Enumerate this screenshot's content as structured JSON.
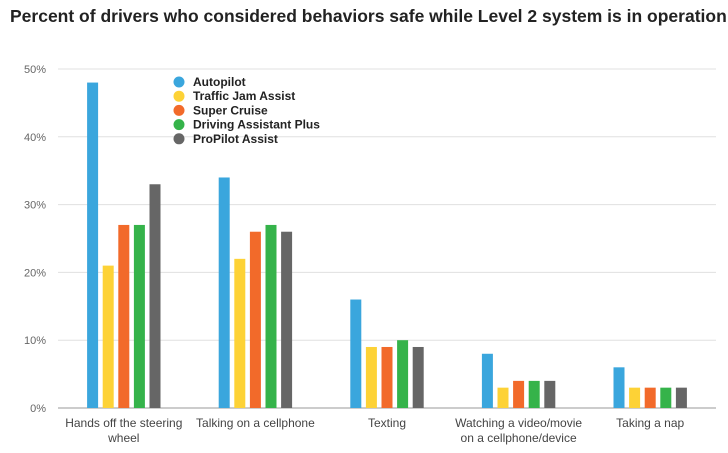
{
  "chart_data": {
    "type": "bar",
    "title": "Percent of drivers who considered behaviors safe while Level 2 system is in operation",
    "categories": [
      [
        "Hands off the steering",
        "wheel"
      ],
      [
        "Talking on a cellphone"
      ],
      [
        "Texting"
      ],
      [
        "Watching a video/movie",
        "on a cellphone/device"
      ],
      [
        "Taking a nap"
      ]
    ],
    "series": [
      {
        "name": "Autopilot",
        "color": "#3aa6dd",
        "values": [
          48,
          34,
          16,
          8,
          6
        ]
      },
      {
        "name": "Traffic Jam Assist",
        "color": "#fdd236",
        "values": [
          21,
          22,
          9,
          3,
          3
        ]
      },
      {
        "name": "Super Cruise",
        "color": "#f26a2a",
        "values": [
          27,
          26,
          9,
          4,
          3
        ]
      },
      {
        "name": "Driving Assistant Plus",
        "color": "#35b34a",
        "values": [
          27,
          27,
          10,
          4,
          3
        ]
      },
      {
        "name": "ProPilot Assist",
        "color": "#666666",
        "values": [
          33,
          26,
          9,
          4,
          3
        ]
      }
    ],
    "ylim": [
      0,
      50
    ],
    "yticks": [
      "0%",
      "10%",
      "20%",
      "30%",
      "40%",
      "50%"
    ],
    "xlabel": "",
    "ylabel": "",
    "grid": true,
    "legend_position": "top-left"
  }
}
